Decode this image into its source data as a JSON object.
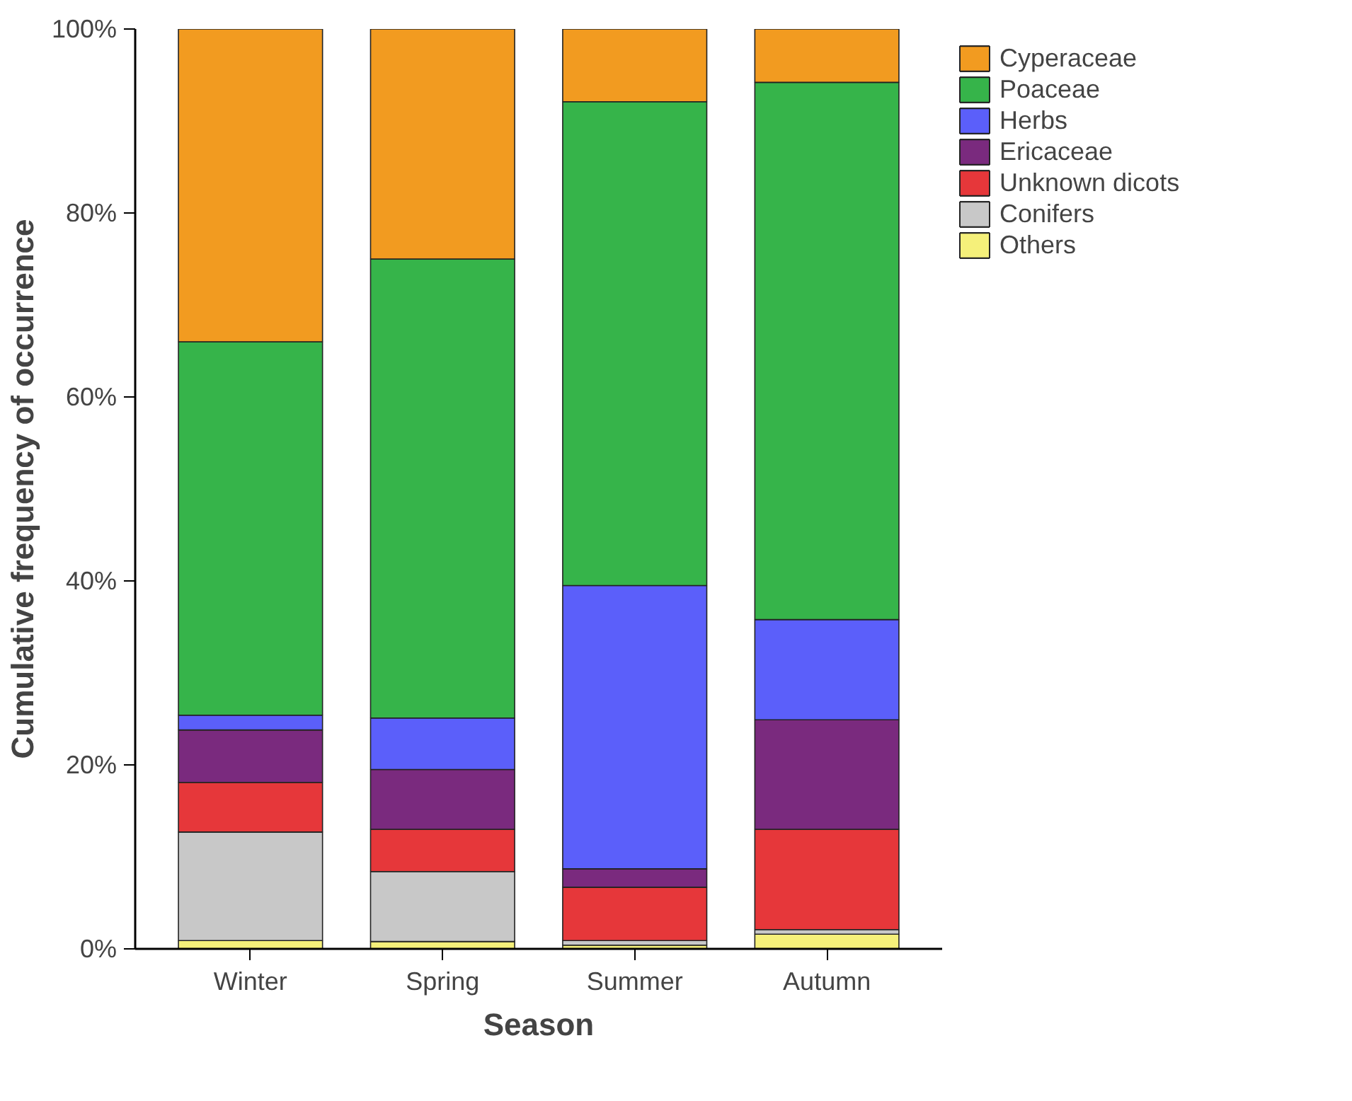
{
  "chart_data": {
    "type": "bar",
    "stacked": true,
    "xlabel": "Season",
    "ylabel": "Cumulative frequency of occurrence",
    "categories": [
      "Winter",
      "Spring",
      "Summer",
      "Autumn"
    ],
    "series": [
      {
        "name": "Others",
        "color": "#f5f07a",
        "values": [
          0.9,
          0.8,
          0.4,
          1.6
        ]
      },
      {
        "name": "Conifers",
        "color": "#c8c8c8",
        "values": [
          11.8,
          7.6,
          0.5,
          0.5
        ]
      },
      {
        "name": "Unknown dicots",
        "color": "#e6373a",
        "values": [
          5.4,
          4.6,
          5.8,
          10.9
        ]
      },
      {
        "name": "Ericaceae",
        "color": "#7a2a7e",
        "values": [
          5.7,
          6.5,
          2.0,
          11.9
        ]
      },
      {
        "name": "Herbs",
        "color": "#5b5ffa",
        "values": [
          1.6,
          5.6,
          30.8,
          10.9
        ]
      },
      {
        "name": "Poaceae",
        "color": "#36b44a",
        "values": [
          40.6,
          49.9,
          52.6,
          58.4
        ]
      },
      {
        "name": "Cyperaceae",
        "color": "#f29b20",
        "values": [
          34.0,
          25.0,
          7.9,
          5.8
        ]
      }
    ],
    "ylim": [
      0,
      100
    ],
    "yticks": [
      {
        "value": 0,
        "label": "0%"
      },
      {
        "value": 20,
        "label": "20%"
      },
      {
        "value": 40,
        "label": "40%"
      },
      {
        "value": 60,
        "label": "60%"
      },
      {
        "value": 80,
        "label": "80%"
      },
      {
        "value": 100,
        "label": "100%"
      }
    ],
    "grid": false,
    "legend": "top right"
  }
}
